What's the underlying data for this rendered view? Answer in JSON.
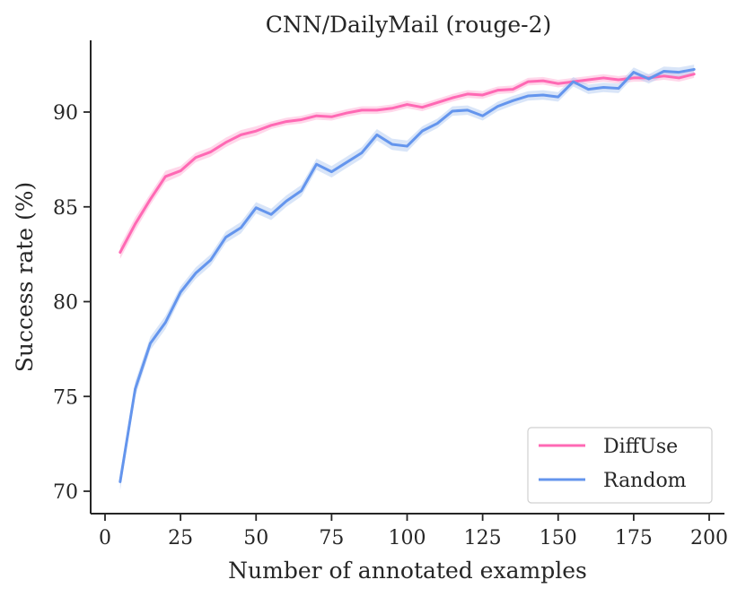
{
  "chart_data": {
    "type": "line",
    "title": "CNN/DailyMail (rouge-2)",
    "xlabel": "Number of annotated examples",
    "ylabel": "Success rate (%)",
    "xlim": [
      -1,
      204
    ],
    "ylim": [
      69.0,
      93.8
    ],
    "x_ticks": [
      0,
      25,
      50,
      75,
      100,
      125,
      150,
      175,
      200
    ],
    "x_tick_labels": [
      "0",
      "25",
      "50",
      "75",
      "100",
      "125",
      "150",
      "175",
      "200"
    ],
    "y_ticks": [
      70,
      75,
      80,
      85,
      90
    ],
    "y_tick_labels": [
      "70",
      "75",
      "80",
      "85",
      "90"
    ],
    "grid": false,
    "legend": "bottom-right",
    "shaded_band": "confidence interval around each series",
    "x": [
      5,
      10,
      15,
      20,
      25,
      30,
      35,
      40,
      45,
      50,
      55,
      60,
      65,
      70,
      75,
      80,
      85,
      90,
      95,
      100,
      105,
      110,
      115,
      120,
      125,
      130,
      135,
      140,
      145,
      150,
      155,
      160,
      165,
      170,
      175,
      180,
      185,
      190,
      195
    ],
    "series": [
      {
        "name": "DiffUse",
        "color": "#ff69b4",
        "band_color": "#ffb6d9",
        "values": [
          82.6,
          84.1,
          85.4,
          86.6,
          86.9,
          87.6,
          87.9,
          88.4,
          88.8,
          89.0,
          89.3,
          89.5,
          89.6,
          89.8,
          89.75,
          89.95,
          90.1,
          90.1,
          90.2,
          90.4,
          90.25,
          90.5,
          90.75,
          90.95,
          90.9,
          91.15,
          91.2,
          91.6,
          91.65,
          91.5,
          91.6,
          91.7,
          91.8,
          91.7,
          91.8,
          91.8,
          91.9,
          91.8,
          92.0
        ],
        "band": [
          0.35,
          0.35,
          0.3,
          0.3,
          0.25,
          0.25,
          0.25,
          0.25,
          0.25,
          0.25,
          0.2,
          0.2,
          0.2,
          0.2,
          0.2,
          0.2,
          0.2,
          0.2,
          0.2,
          0.2,
          0.2,
          0.2,
          0.2,
          0.2,
          0.2,
          0.2,
          0.2,
          0.2,
          0.2,
          0.2,
          0.2,
          0.2,
          0.2,
          0.2,
          0.2,
          0.2,
          0.2,
          0.2,
          0.2
        ]
      },
      {
        "name": "Random",
        "color": "#6495ed",
        "band_color": "#b9cff2",
        "values": [
          70.5,
          75.4,
          77.8,
          78.9,
          80.5,
          81.5,
          82.2,
          83.4,
          83.9,
          84.95,
          84.6,
          85.3,
          85.85,
          87.25,
          86.85,
          87.35,
          87.85,
          88.8,
          88.3,
          88.2,
          89.0,
          89.4,
          90.05,
          90.1,
          89.8,
          90.3,
          90.6,
          90.85,
          90.9,
          90.8,
          91.6,
          91.2,
          91.3,
          91.25,
          92.1,
          91.75,
          92.15,
          92.1,
          92.25
        ],
        "band": [
          0.45,
          0.4,
          0.35,
          0.35,
          0.3,
          0.3,
          0.3,
          0.3,
          0.3,
          0.3,
          0.3,
          0.3,
          0.3,
          0.3,
          0.3,
          0.3,
          0.3,
          0.3,
          0.3,
          0.3,
          0.25,
          0.25,
          0.25,
          0.25,
          0.25,
          0.25,
          0.25,
          0.25,
          0.25,
          0.25,
          0.25,
          0.25,
          0.25,
          0.25,
          0.25,
          0.25,
          0.25,
          0.25,
          0.25
        ]
      }
    ]
  }
}
